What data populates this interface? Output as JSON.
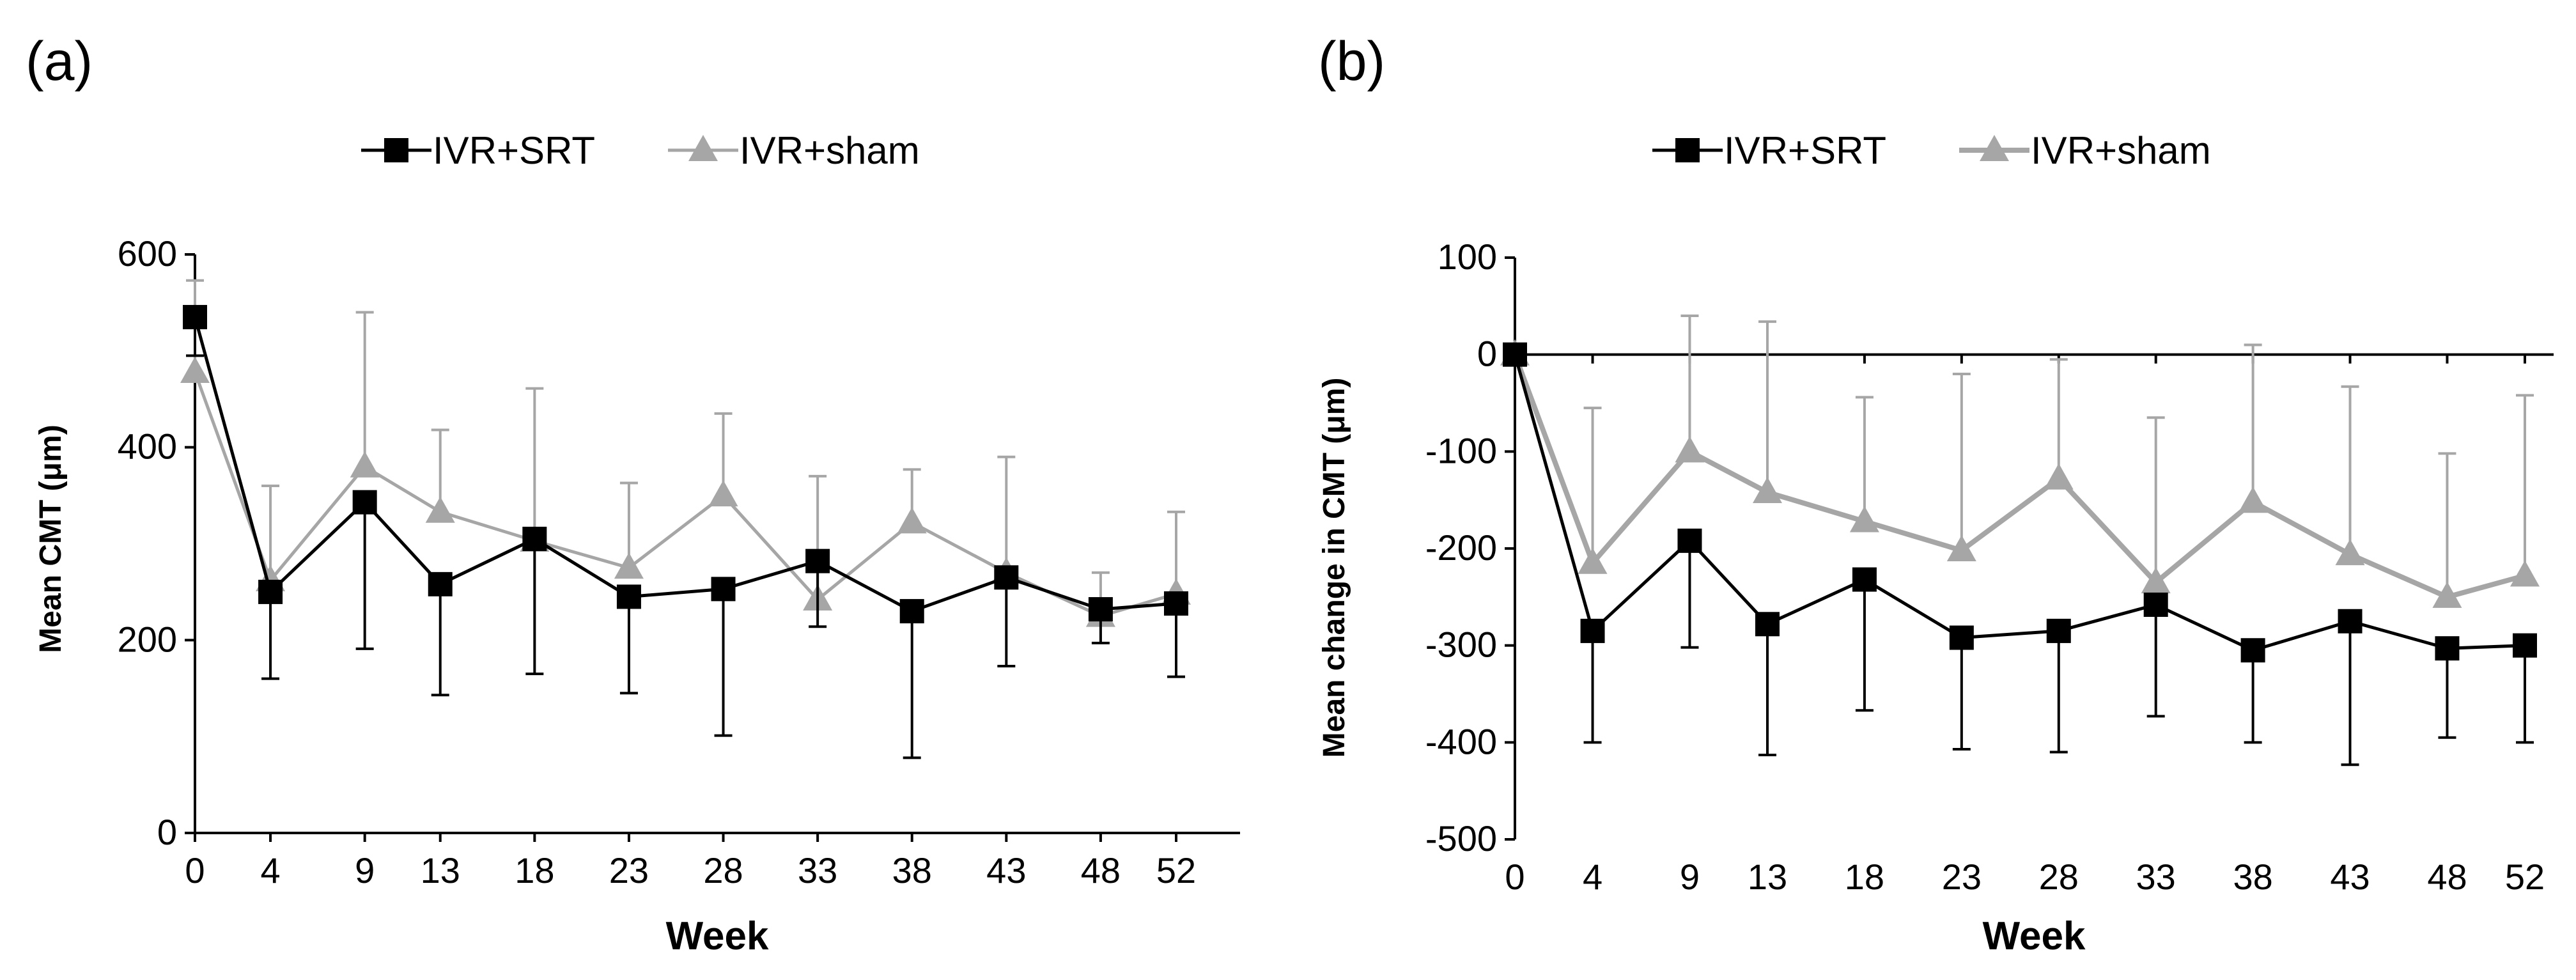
{
  "panels": [
    {
      "panel_label": "(a)",
      "colors": {
        "srt": "#000000",
        "sham": "#a6a6a6"
      },
      "chart_data": {
        "type": "line",
        "x": [
          0,
          4,
          9,
          13,
          18,
          23,
          28,
          33,
          38,
          43,
          48,
          52
        ],
        "x_tick_labels": [
          "0",
          "4",
          "9",
          "13",
          "18",
          "23",
          "28",
          "33",
          "38",
          "43",
          "48",
          "52"
        ],
        "y_tick_labels": [
          "0",
          "200",
          "400",
          "600"
        ],
        "xlabel": "Week",
        "ylabel": "Mean CMT (μm)",
        "ylim": [
          0,
          600
        ],
        "grid": false,
        "legend_position": "top",
        "legend": [
          "IVR+SRT",
          "IVR+sham"
        ],
        "series": [
          {
            "name": "IVR+SRT",
            "marker": "square",
            "error_direction": "down",
            "values": [
              535,
              250,
              343,
              258,
              305,
              245,
              253,
              282,
              230,
              265,
              232,
              238
            ],
            "errors": [
              40,
              90,
              152,
              115,
              140,
              100,
              152,
              68,
              152,
              92,
              35,
              76
            ]
          },
          {
            "name": "IVR+sham",
            "marker": "triangle",
            "error_direction": "up",
            "values": [
              478,
              262,
              380,
              333,
              303,
              275,
              350,
              242,
              322,
              270,
              225,
              248
            ],
            "errors": [
              95,
              98,
              160,
              85,
              158,
              88,
              85,
              128,
              55,
              120,
              45,
              85
            ]
          }
        ]
      }
    },
    {
      "panel_label": "(b)",
      "colors": {
        "srt": "#000000",
        "sham": "#a6a6a6"
      },
      "chart_data": {
        "type": "line",
        "x": [
          0,
          4,
          9,
          13,
          18,
          23,
          28,
          33,
          38,
          43,
          48,
          52
        ],
        "x_tick_labels": [
          "0",
          "4",
          "9",
          "13",
          "18",
          "23",
          "28",
          "33",
          "38",
          "43",
          "48",
          "52"
        ],
        "y_tick_labels": [
          "-500",
          "-400",
          "-300",
          "-200",
          "-100",
          "0",
          "100"
        ],
        "xlabel": "Week",
        "ylabel": "Mean change in CMT (μm)",
        "ylim": [
          -500,
          100
        ],
        "grid": false,
        "legend_position": "top",
        "legend": [
          "IVR+SRT",
          "IVR+sham"
        ],
        "series": [
          {
            "name": "IVR+SRT",
            "marker": "square",
            "error_direction": "down",
            "values": [
              0,
              -285,
              -192,
              -278,
              -232,
              -292,
              -285,
              -258,
              -305,
              -275,
              -303,
              -300
            ],
            "errors": [
              0,
              115,
              110,
              135,
              135,
              115,
              125,
              115,
              95,
              148,
              92,
              100
            ]
          },
          {
            "name": "IVR+sham",
            "marker": "triangle",
            "error_direction": "up",
            "values": [
              0,
              -215,
              -100,
              -142,
              -172,
              -202,
              -128,
              -235,
              -152,
              -206,
              -250,
              -228
            ],
            "errors": [
              0,
              160,
              140,
              176,
              128,
              182,
              123,
              170,
              162,
              173,
              148,
              186
            ]
          }
        ]
      }
    }
  ]
}
